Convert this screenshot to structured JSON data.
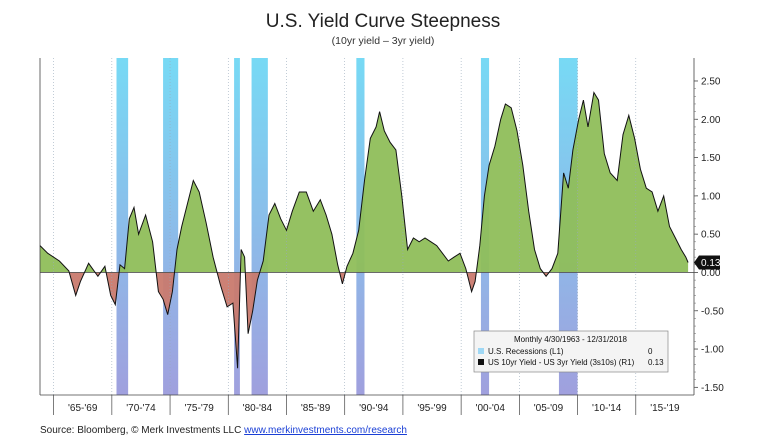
{
  "title": "U.S. Yield Curve Steepness",
  "subtitle": "(10yr yield – 3yr yield)",
  "source": {
    "prefix": "Source: Bloomberg, © Merk Investments LLC ",
    "link": "www.merkinvestments.com/research"
  },
  "legend": {
    "header": "Monthly 4/30/1963 - 12/31/2018",
    "items": [
      {
        "label": "U.S. Recessions (L1)",
        "value": "0",
        "color": "#9fd8f5"
      },
      {
        "label": "US 10yr Yield - US 3yr Yield (3s10s) (R1)",
        "value": "0.13",
        "color": "#111111"
      }
    ]
  },
  "colors": {
    "positive_fill": "#8fbe5a",
    "negative_fill": "#c97a6e",
    "line": "#111111",
    "recession": "#5fd3f3",
    "last_value_label": "#111111"
  },
  "chart_data": {
    "type": "area",
    "title": "U.S. Yield Curve Steepness",
    "subtitle": "(10yr yield – 3yr yield)",
    "frequency": "Monthly",
    "date_range": [
      "1963-04-30",
      "2018-12-31"
    ],
    "ylim": [
      -1.6,
      2.8
    ],
    "y_ticks": [
      "2.50",
      "2.00",
      "1.50",
      "1.00",
      "0.50",
      "0.00",
      "-0.50",
      "-1.00",
      "-1.50"
    ],
    "y_tick_values": [
      2.5,
      2.0,
      1.5,
      1.0,
      0.5,
      0.0,
      -0.5,
      -1.0,
      -1.5
    ],
    "x_ticks": [
      "'65-'69",
      "'70-'74",
      "'75-'79",
      "'80-'84",
      "'85-'89",
      "'90-'94",
      "'95-'99",
      "'00-'04",
      "'05-'09",
      "'10-'14",
      "'15-'19"
    ],
    "x_tick_years": [
      1967,
      1972,
      1977,
      1982,
      1987,
      1992,
      1997,
      2002,
      2007,
      2012,
      2017
    ],
    "xlim": [
      1963.33,
      2019.5
    ],
    "last_value": "0.13",
    "recessions": [
      [
        1969.9,
        1970.9
      ],
      [
        1973.9,
        1975.2
      ],
      [
        1980.0,
        1980.5
      ],
      [
        1981.5,
        1982.9
      ],
      [
        1990.5,
        1991.2
      ],
      [
        2001.2,
        2001.9
      ],
      [
        2007.9,
        2009.5
      ]
    ],
    "series": [
      {
        "name": "US 10yr Yield - US 3yr Yield (3s10s)",
        "points": [
          [
            1963.33,
            0.35
          ],
          [
            1964.0,
            0.25
          ],
          [
            1965.0,
            0.15
          ],
          [
            1965.8,
            0.02
          ],
          [
            1966.4,
            -0.3
          ],
          [
            1966.8,
            -0.12
          ],
          [
            1967.5,
            0.12
          ],
          [
            1968.3,
            -0.05
          ],
          [
            1968.9,
            0.08
          ],
          [
            1969.4,
            -0.3
          ],
          [
            1969.8,
            -0.42
          ],
          [
            1970.2,
            0.1
          ],
          [
            1970.6,
            0.05
          ],
          [
            1971.0,
            0.7
          ],
          [
            1971.4,
            0.85
          ],
          [
            1971.8,
            0.5
          ],
          [
            1972.4,
            0.75
          ],
          [
            1973.0,
            0.4
          ],
          [
            1973.5,
            -0.25
          ],
          [
            1973.9,
            -0.35
          ],
          [
            1974.3,
            -0.55
          ],
          [
            1974.7,
            -0.25
          ],
          [
            1975.1,
            0.3
          ],
          [
            1975.5,
            0.6
          ],
          [
            1976.0,
            0.9
          ],
          [
            1976.5,
            1.2
          ],
          [
            1977.0,
            1.05
          ],
          [
            1977.6,
            0.65
          ],
          [
            1978.2,
            0.2
          ],
          [
            1978.8,
            -0.15
          ],
          [
            1979.4,
            -0.45
          ],
          [
            1979.9,
            -0.4
          ],
          [
            1980.3,
            -1.25
          ],
          [
            1980.6,
            0.3
          ],
          [
            1980.9,
            0.2
          ],
          [
            1981.2,
            -0.8
          ],
          [
            1981.6,
            -0.5
          ],
          [
            1982.0,
            -0.1
          ],
          [
            1982.5,
            0.15
          ],
          [
            1983.0,
            0.75
          ],
          [
            1983.5,
            0.9
          ],
          [
            1984.0,
            0.7
          ],
          [
            1984.5,
            0.55
          ],
          [
            1985.0,
            0.8
          ],
          [
            1985.6,
            1.05
          ],
          [
            1986.2,
            1.05
          ],
          [
            1986.8,
            0.8
          ],
          [
            1987.4,
            0.95
          ],
          [
            1987.9,
            0.75
          ],
          [
            1988.4,
            0.5
          ],
          [
            1988.9,
            0.1
          ],
          [
            1989.3,
            -0.15
          ],
          [
            1989.7,
            0.08
          ],
          [
            1990.2,
            0.25
          ],
          [
            1990.7,
            0.55
          ],
          [
            1991.2,
            1.2
          ],
          [
            1991.7,
            1.75
          ],
          [
            1992.2,
            1.9
          ],
          [
            1992.5,
            2.1
          ],
          [
            1992.9,
            1.85
          ],
          [
            1993.4,
            1.7
          ],
          [
            1993.9,
            1.6
          ],
          [
            1994.4,
            1.0
          ],
          [
            1994.9,
            0.3
          ],
          [
            1995.4,
            0.45
          ],
          [
            1995.9,
            0.4
          ],
          [
            1996.4,
            0.45
          ],
          [
            1996.9,
            0.4
          ],
          [
            1997.4,
            0.35
          ],
          [
            1997.9,
            0.25
          ],
          [
            1998.4,
            0.15
          ],
          [
            1998.9,
            0.2
          ],
          [
            1999.4,
            0.25
          ],
          [
            1999.9,
            0.05
          ],
          [
            2000.4,
            -0.25
          ],
          [
            2000.7,
            -0.12
          ],
          [
            2001.1,
            0.35
          ],
          [
            2001.5,
            1.0
          ],
          [
            2001.9,
            1.4
          ],
          [
            2002.4,
            1.65
          ],
          [
            2002.9,
            2.0
          ],
          [
            2003.3,
            2.2
          ],
          [
            2003.8,
            2.15
          ],
          [
            2004.3,
            1.85
          ],
          [
            2004.8,
            1.4
          ],
          [
            2005.3,
            0.8
          ],
          [
            2005.8,
            0.3
          ],
          [
            2006.3,
            0.05
          ],
          [
            2006.8,
            -0.05
          ],
          [
            2007.3,
            0.05
          ],
          [
            2007.8,
            0.25
          ],
          [
            2008.3,
            1.3
          ],
          [
            2008.7,
            1.1
          ],
          [
            2009.1,
            1.6
          ],
          [
            2009.6,
            2.0
          ],
          [
            2010.0,
            2.25
          ],
          [
            2010.4,
            1.9
          ],
          [
            2010.9,
            2.35
          ],
          [
            2011.3,
            2.25
          ],
          [
            2011.8,
            1.55
          ],
          [
            2012.3,
            1.3
          ],
          [
            2012.9,
            1.2
          ],
          [
            2013.4,
            1.8
          ],
          [
            2013.9,
            2.05
          ],
          [
            2014.4,
            1.75
          ],
          [
            2014.9,
            1.35
          ],
          [
            2015.4,
            1.1
          ],
          [
            2015.9,
            1.05
          ],
          [
            2016.4,
            0.8
          ],
          [
            2016.9,
            1.0
          ],
          [
            2017.4,
            0.6
          ],
          [
            2017.9,
            0.45
          ],
          [
            2018.4,
            0.3
          ],
          [
            2018.8,
            0.2
          ],
          [
            2018.99,
            0.13
          ]
        ]
      }
    ]
  }
}
